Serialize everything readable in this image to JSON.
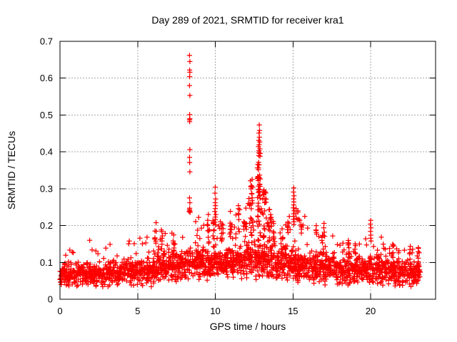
{
  "chart_data": {
    "type": "scatter",
    "title": "Day 289 of 2021, SRMTID for receiver kra1",
    "xlabel": "GPS time / hours",
    "ylabel": "SRMTID / TECUs",
    "xlim": [
      0,
      24.18
    ],
    "ylim": [
      0,
      0.7
    ],
    "xticks": [
      0,
      5,
      10,
      15,
      20
    ],
    "yticks": [
      0,
      0.1,
      0.2,
      0.3,
      0.4,
      0.5,
      0.6,
      0.7
    ],
    "xtick_labels": [
      "0",
      "5",
      "10",
      "15",
      "20"
    ],
    "ytick_labels": [
      "0",
      "0.1",
      "0.2",
      "0.3",
      "0.4",
      "0.5",
      "0.6",
      "0.7"
    ],
    "grid": true,
    "legend_position": "none",
    "marker": "plus",
    "marker_color": "#ff0000",
    "grid_color": "#a6a6a6",
    "axis_color": "#000000",
    "background": "#ffffff",
    "seed": 17,
    "band_bins": [
      [
        0,
        1,
        92,
        0.03,
        0.105,
        0.135
      ],
      [
        1,
        2,
        92,
        0.03,
        0.105,
        0.16
      ],
      [
        2,
        3,
        92,
        0.03,
        0.108,
        0.14
      ],
      [
        3,
        4,
        92,
        0.032,
        0.112,
        0.152
      ],
      [
        4,
        5,
        92,
        0.033,
        0.115,
        0.16
      ],
      [
        5,
        6,
        88,
        0.03,
        0.12,
        0.17
      ],
      [
        6,
        7,
        100,
        0.038,
        0.14,
        0.185
      ],
      [
        7,
        8,
        100,
        0.04,
        0.145,
        0.185
      ],
      [
        8,
        9,
        100,
        0.045,
        0.15,
        0.228
      ],
      [
        9,
        10,
        100,
        0.048,
        0.155,
        0.222
      ],
      [
        10,
        11,
        100,
        0.048,
        0.15,
        0.215
      ],
      [
        11,
        12,
        100,
        0.05,
        0.155,
        0.235
      ],
      [
        12,
        13,
        110,
        0.05,
        0.175,
        0.28
      ],
      [
        13,
        14,
        105,
        0.05,
        0.165,
        0.255
      ],
      [
        14,
        15,
        100,
        0.048,
        0.15,
        0.228
      ],
      [
        15,
        16,
        100,
        0.042,
        0.14,
        0.22
      ],
      [
        16,
        17,
        96,
        0.04,
        0.135,
        0.195
      ],
      [
        17,
        18,
        96,
        0.038,
        0.128,
        0.175
      ],
      [
        18,
        19,
        92,
        0.035,
        0.125,
        0.16
      ],
      [
        19,
        20,
        92,
        0.035,
        0.125,
        0.165
      ],
      [
        20,
        21,
        92,
        0.035,
        0.128,
        0.18
      ],
      [
        21,
        22,
        92,
        0.032,
        0.118,
        0.15
      ],
      [
        22,
        23,
        92,
        0.03,
        0.115,
        0.148
      ],
      [
        23,
        23.2,
        20,
        0.035,
        0.11,
        0.14
      ]
    ],
    "columns": [
      [
        6.15,
        0.05,
        9,
        0.15,
        0.215
      ],
      [
        6.55,
        0.05,
        7,
        0.135,
        0.19
      ],
      [
        7.3,
        0.06,
        6,
        0.13,
        0.18
      ],
      [
        9.55,
        0.07,
        8,
        0.15,
        0.235
      ],
      [
        9.9,
        0.06,
        8,
        0.14,
        0.22
      ],
      [
        10.45,
        0.06,
        7,
        0.15,
        0.225
      ],
      [
        11.0,
        0.07,
        8,
        0.15,
        0.24
      ],
      [
        11.55,
        0.07,
        8,
        0.15,
        0.26
      ],
      [
        11.95,
        0.07,
        9,
        0.15,
        0.255
      ],
      [
        12.35,
        0.1,
        22,
        0.17,
        0.33
      ],
      [
        12.8,
        0.09,
        46,
        0.18,
        0.405
      ],
      [
        13.1,
        0.08,
        14,
        0.16,
        0.3
      ],
      [
        13.24,
        0.05,
        8,
        0.22,
        0.3
      ],
      [
        13.45,
        0.08,
        10,
        0.15,
        0.25
      ],
      [
        13.55,
        0.05,
        5,
        0.2,
        0.24
      ],
      [
        13.8,
        0.07,
        7,
        0.14,
        0.215
      ],
      [
        14.3,
        0.07,
        6,
        0.14,
        0.2
      ],
      [
        14.7,
        0.06,
        6,
        0.14,
        0.21
      ],
      [
        15.35,
        0.05,
        5,
        0.21,
        0.262
      ],
      [
        15.55,
        0.05,
        4,
        0.17,
        0.212
      ],
      [
        16.9,
        0.06,
        5,
        0.13,
        0.175
      ],
      [
        18.6,
        0.07,
        5,
        0.12,
        0.16
      ],
      [
        19.0,
        0.06,
        4,
        0.12,
        0.155
      ],
      [
        21.4,
        0.06,
        4,
        0.11,
        0.15
      ],
      [
        22.5,
        0.06,
        4,
        0.11,
        0.145
      ],
      [
        23.05,
        0.06,
        5,
        0.1,
        0.145
      ]
    ],
    "spike_points": [
      [
        8.34,
        0.662
      ],
      [
        8.36,
        0.645
      ],
      [
        8.35,
        0.622
      ],
      [
        8.36,
        0.616
      ],
      [
        8.35,
        0.604
      ],
      [
        8.34,
        0.58
      ],
      [
        8.36,
        0.553
      ],
      [
        8.35,
        0.501
      ],
      [
        8.36,
        0.49
      ],
      [
        8.34,
        0.487
      ],
      [
        8.35,
        0.482
      ],
      [
        8.36,
        0.406
      ],
      [
        8.34,
        0.385
      ],
      [
        8.35,
        0.371
      ],
      [
        8.36,
        0.346
      ],
      [
        8.34,
        0.275
      ],
      [
        8.36,
        0.262
      ],
      [
        8.35,
        0.247
      ],
      [
        8.34,
        0.243
      ],
      [
        8.36,
        0.24
      ],
      [
        8.32,
        0.238
      ],
      [
        8.38,
        0.236
      ],
      [
        10.0,
        0.304
      ],
      [
        9.98,
        0.288
      ],
      [
        10.02,
        0.272
      ],
      [
        9.99,
        0.262
      ],
      [
        10.01,
        0.254
      ],
      [
        10.0,
        0.246
      ],
      [
        9.97,
        0.238
      ],
      [
        10.03,
        0.23
      ],
      [
        9.99,
        0.223
      ],
      [
        10.01,
        0.216
      ],
      [
        9.96,
        0.209
      ],
      [
        10.02,
        0.202
      ],
      [
        12.83,
        0.473
      ],
      [
        12.85,
        0.458
      ],
      [
        12.81,
        0.451
      ],
      [
        12.84,
        0.44
      ],
      [
        12.8,
        0.431
      ],
      [
        12.86,
        0.427
      ],
      [
        12.82,
        0.419
      ],
      [
        12.78,
        0.414
      ],
      [
        12.87,
        0.408
      ],
      [
        12.81,
        0.403
      ],
      [
        15.05,
        0.302
      ],
      [
        15.03,
        0.291
      ],
      [
        15.07,
        0.281
      ],
      [
        15.04,
        0.272
      ],
      [
        15.06,
        0.264
      ],
      [
        15.05,
        0.256
      ],
      [
        15.02,
        0.248
      ],
      [
        15.08,
        0.24
      ],
      [
        15.04,
        0.232
      ],
      [
        15.06,
        0.225
      ],
      [
        15.03,
        0.217
      ],
      [
        15.07,
        0.21
      ],
      [
        15.05,
        0.203
      ],
      [
        15.2,
        0.246
      ],
      [
        15.18,
        0.232
      ],
      [
        15.22,
        0.22
      ],
      [
        15.76,
        0.225
      ],
      [
        16.5,
        0.2
      ],
      [
        16.48,
        0.188
      ],
      [
        16.52,
        0.177
      ],
      [
        17.0,
        0.206
      ],
      [
        16.98,
        0.194
      ],
      [
        17.02,
        0.182
      ],
      [
        17.04,
        0.171
      ],
      [
        20.0,
        0.214
      ],
      [
        19.98,
        0.204
      ],
      [
        20.02,
        0.194
      ],
      [
        19.99,
        0.184
      ],
      [
        20.01,
        0.174
      ],
      [
        20.0,
        0.166
      ],
      [
        20.03,
        0.158
      ]
    ]
  }
}
